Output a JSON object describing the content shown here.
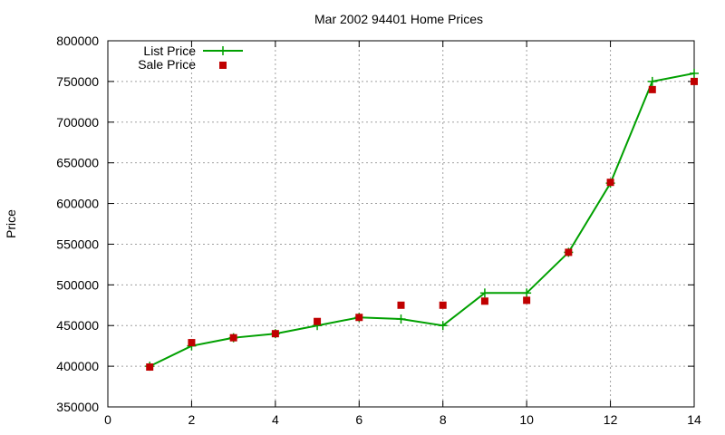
{
  "chart_data": {
    "type": "line",
    "title": "Mar 2002 94401 Home Prices",
    "xlabel": "",
    "ylabel": "Price",
    "xlim": [
      0,
      14
    ],
    "ylim": [
      350000,
      800000
    ],
    "x_ticks": [
      "0",
      "2",
      "4",
      "6",
      "8",
      "10",
      "12",
      "14"
    ],
    "y_ticks": [
      "350000",
      "400000",
      "450000",
      "500000",
      "550000",
      "600000",
      "650000",
      "700000",
      "750000",
      "800000"
    ],
    "grid": true,
    "legend_position": "top-left",
    "series": [
      {
        "name": "List Price",
        "style": "line with plus markers",
        "color": "#00a000",
        "points": [
          [
            1,
            400000
          ],
          [
            2,
            425000
          ],
          [
            3,
            435000
          ],
          [
            4,
            440000
          ],
          [
            5,
            450000
          ],
          [
            6,
            460000
          ],
          [
            7,
            458000
          ],
          [
            8,
            450000
          ],
          [
            9,
            490000
          ],
          [
            10,
            490000
          ],
          [
            11,
            540000
          ],
          [
            12,
            625000
          ],
          [
            13,
            750000
          ],
          [
            14,
            760000
          ]
        ]
      },
      {
        "name": "Sale Price",
        "style": "square markers",
        "color": "#c00000",
        "points": [
          [
            1,
            399000
          ],
          [
            2,
            429000
          ],
          [
            3,
            435000
          ],
          [
            4,
            440000
          ],
          [
            5,
            455000
          ],
          [
            6,
            460000
          ],
          [
            7,
            475000
          ],
          [
            8,
            475000
          ],
          [
            9,
            480000
          ],
          [
            10,
            481000
          ],
          [
            11,
            540000
          ],
          [
            12,
            626000
          ],
          [
            13,
            740000
          ],
          [
            14,
            750000
          ]
        ]
      }
    ]
  }
}
